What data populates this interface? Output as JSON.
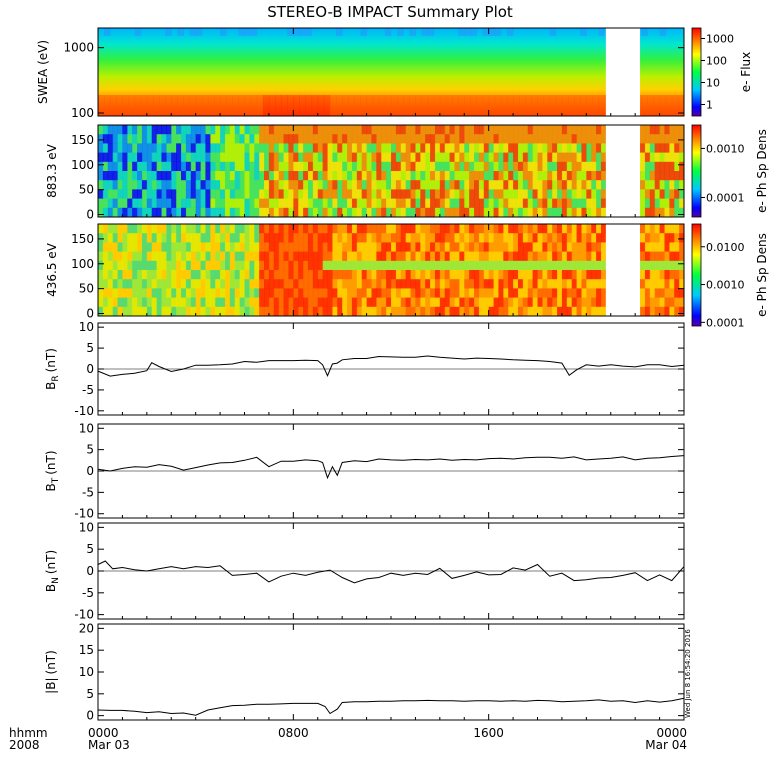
{
  "chart_data": {
    "type": "line",
    "title": "STEREO-B IMPACT Summary Plot",
    "x_axis": {
      "label_lines": [
        "hhmm",
        "2008"
      ],
      "range_hours": [
        0,
        24
      ],
      "tick_hours": [
        0,
        8,
        16,
        24
      ],
      "tick_labels": [
        "0000",
        "0800",
        "1600",
        "0000"
      ],
      "date_labels": [
        "Mar 03",
        "",
        "",
        "Mar 04"
      ]
    },
    "timestamp": "Wed Jun 8 16:54:20 2016",
    "data_gap_hours": [
      [
        20.8,
        22.2
      ]
    ],
    "spectrograms": [
      {
        "ylabel": "SWEA (eV)",
        "y_scale": "log",
        "ylim": [
          90,
          2000
        ],
        "yticks": [
          100,
          1000
        ],
        "ytick_labels": [
          "100",
          "1000"
        ],
        "colorbar": {
          "label": "e- Flux",
          "scale": "log",
          "range": [
            0.3,
            3000
          ],
          "ticks": [
            1,
            10,
            100,
            1000
          ],
          "tick_labels": [
            "1",
            "10",
            "100",
            "1000"
          ]
        }
      },
      {
        "ylabel": "883.3 eV",
        "y_scale": "linear",
        "ylim": [
          -5,
          180
        ],
        "yticks": [
          0,
          50,
          100,
          150
        ],
        "ytick_labels": [
          "0",
          "50",
          "100",
          "150"
        ],
        "colorbar": {
          "label": "e- Ph Sp Dens",
          "scale": "log",
          "range": [
            4e-05,
            0.003
          ],
          "ticks": [
            0.0001,
            0.001
          ],
          "tick_labels": [
            "0.0001",
            "0.0010"
          ]
        }
      },
      {
        "ylabel": "436.5 eV",
        "y_scale": "linear",
        "ylim": [
          -5,
          180
        ],
        "yticks": [
          0,
          50,
          100,
          150
        ],
        "ytick_labels": [
          "0",
          "50",
          "100",
          "150"
        ],
        "colorbar": {
          "label": "e- Ph Sp Dens",
          "scale": "log",
          "range": [
            8e-05,
            0.04
          ],
          "ticks": [
            0.0001,
            0.001,
            0.01
          ],
          "tick_labels": [
            "0.0001",
            "0.0010",
            "0.0100"
          ]
        }
      }
    ],
    "line_panels": [
      {
        "ylabel_main": "B",
        "ylabel_sub": "R",
        "ylabel_unit": "(nT)",
        "ylim": [
          -11,
          11
        ],
        "yticks": [
          -10,
          -5,
          0,
          5,
          10
        ],
        "ytick_labels": [
          "-10",
          "-5",
          "0",
          "5",
          "10"
        ],
        "series": {
          "x_hours": [
            0,
            0.5,
            1,
            1.5,
            2,
            2.2,
            2.5,
            3,
            3.5,
            4,
            4.5,
            5,
            5.5,
            6,
            6.5,
            7,
            7.5,
            8,
            8.5,
            9,
            9.2,
            9.4,
            9.6,
            9.8,
            10,
            10.5,
            11,
            11.5,
            12,
            12.5,
            13,
            13.5,
            14,
            14.5,
            15,
            15.5,
            16,
            16.5,
            17,
            17.5,
            18,
            18.5,
            19,
            19.3,
            19.6,
            20,
            20.5,
            21,
            21.5,
            22,
            22.5,
            23,
            23.5,
            24
          ],
          "values": [
            -0.5,
            -1.7,
            -1.3,
            -1.0,
            -0.4,
            1.5,
            0.6,
            -0.6,
            0.0,
            0.9,
            0.9,
            1.0,
            1.2,
            1.8,
            1.6,
            2.0,
            2.0,
            2.0,
            2.1,
            2.0,
            1.0,
            -1.6,
            1.2,
            1.4,
            2.2,
            2.5,
            2.5,
            3.0,
            2.9,
            2.8,
            2.8,
            3.1,
            2.8,
            2.6,
            2.4,
            2.6,
            2.5,
            2.4,
            2.2,
            2.1,
            2.0,
            1.8,
            1.4,
            -1.5,
            -0.2,
            1.0,
            0.7,
            1.0,
            0.7,
            0.5,
            1.0,
            1.0,
            0.6,
            0.9
          ]
        }
      },
      {
        "ylabel_main": "B",
        "ylabel_sub": "T",
        "ylabel_unit": "(nT)",
        "ylim": [
          -11,
          11
        ],
        "yticks": [
          -10,
          -5,
          0,
          5,
          10
        ],
        "ytick_labels": [
          "-10",
          "-5",
          "0",
          "5",
          "10"
        ],
        "series": {
          "x_hours": [
            0,
            0.5,
            1,
            1.5,
            2,
            2.5,
            3,
            3.5,
            4,
            4.5,
            5,
            5.5,
            6,
            6.5,
            7,
            7.5,
            8,
            8.5,
            9,
            9.2,
            9.4,
            9.6,
            9.8,
            10,
            10.5,
            11,
            11.5,
            12,
            12.5,
            13,
            13.5,
            14,
            14.5,
            15,
            15.5,
            16,
            16.5,
            17,
            17.5,
            18,
            18.5,
            19,
            19.5,
            20,
            20.5,
            21,
            21.5,
            22,
            22.5,
            23,
            23.5,
            24
          ],
          "values": [
            0.4,
            0.0,
            0.6,
            1.0,
            0.9,
            1.5,
            1.1,
            0.2,
            0.8,
            1.4,
            1.9,
            2.0,
            2.5,
            3.2,
            1.0,
            2.3,
            2.3,
            2.6,
            2.4,
            2.0,
            -1.6,
            1.0,
            -1.0,
            2.0,
            2.4,
            2.2,
            2.8,
            2.6,
            2.5,
            2.7,
            2.6,
            2.8,
            2.5,
            2.7,
            2.6,
            2.9,
            3.0,
            2.8,
            3.1,
            3.2,
            3.2,
            3.0,
            3.3,
            2.6,
            2.8,
            3.0,
            3.3,
            2.6,
            3.0,
            3.1,
            3.4,
            3.6
          ]
        }
      },
      {
        "ylabel_main": "B",
        "ylabel_sub": "N",
        "ylabel_unit": "(nT)",
        "ylim": [
          -11,
          11
        ],
        "yticks": [
          -10,
          -5,
          0,
          5,
          10
        ],
        "ytick_labels": [
          "-10",
          "-5",
          "0",
          "5",
          "10"
        ],
        "series": {
          "x_hours": [
            0,
            0.3,
            0.6,
            1,
            1.5,
            2,
            2.5,
            3,
            3.5,
            4,
            4.5,
            5,
            5.5,
            6,
            6.5,
            7,
            7.5,
            8,
            8.5,
            9,
            9.5,
            10,
            10.5,
            11,
            11.5,
            12,
            12.5,
            13,
            13.5,
            14,
            14.5,
            15,
            15.5,
            16,
            16.5,
            17,
            17.5,
            18,
            18.5,
            19,
            19.5,
            20,
            20.5,
            21,
            21.5,
            22,
            22.5,
            23,
            23.5,
            24
          ],
          "values": [
            1.5,
            2.3,
            0.5,
            0.8,
            0.3,
            0.0,
            0.5,
            1.0,
            0.5,
            1.0,
            0.8,
            1.2,
            -1.0,
            -0.8,
            -0.5,
            -2.5,
            -1.2,
            -0.5,
            -1.0,
            -0.3,
            0.2,
            -1.5,
            -2.7,
            -1.8,
            -1.5,
            -0.5,
            -1.0,
            -0.5,
            -0.8,
            0.6,
            -1.7,
            -1.0,
            -0.2,
            -0.9,
            -0.8,
            0.7,
            0.2,
            1.5,
            -1.2,
            -0.5,
            -2.2,
            -2.0,
            -1.6,
            -1.5,
            -1.0,
            -0.4,
            -2.2,
            -0.9,
            -2.2,
            1.0
          ]
        }
      },
      {
        "ylabel_main": "|B|",
        "ylabel_sub": "",
        "ylabel_unit": "(nT)",
        "ylim": [
          -1,
          21
        ],
        "yticks": [
          0,
          5,
          10,
          15,
          20
        ],
        "ytick_labels": [
          "0",
          "5",
          "10",
          "15",
          "20"
        ],
        "series": {
          "x_hours": [
            0,
            0.5,
            1,
            1.5,
            2,
            2.5,
            3,
            3.5,
            4,
            4.5,
            5,
            5.5,
            6,
            6.5,
            7,
            7.5,
            8,
            8.5,
            9,
            9.3,
            9.5,
            9.8,
            10,
            10.5,
            11,
            11.5,
            12,
            12.5,
            13,
            13.5,
            14,
            14.5,
            15,
            15.5,
            16,
            16.5,
            17,
            17.5,
            18,
            18.5,
            19,
            19.5,
            20,
            20.5,
            21,
            21.5,
            22,
            22.5,
            23,
            23.5,
            24
          ],
          "values": [
            1.3,
            1.2,
            1.2,
            1.0,
            0.7,
            0.9,
            0.5,
            0.6,
            0.1,
            1.3,
            1.8,
            2.3,
            2.4,
            2.6,
            2.6,
            2.7,
            2.8,
            2.8,
            2.8,
            2.1,
            0.5,
            1.5,
            3.0,
            3.2,
            3.2,
            3.3,
            3.3,
            3.4,
            3.4,
            3.5,
            3.4,
            3.4,
            3.3,
            3.4,
            3.4,
            3.3,
            3.4,
            3.3,
            3.5,
            3.4,
            3.2,
            3.3,
            3.4,
            3.6,
            3.3,
            3.4,
            3.0,
            3.4,
            3.1,
            3.4,
            4.0
          ]
        }
      }
    ]
  }
}
